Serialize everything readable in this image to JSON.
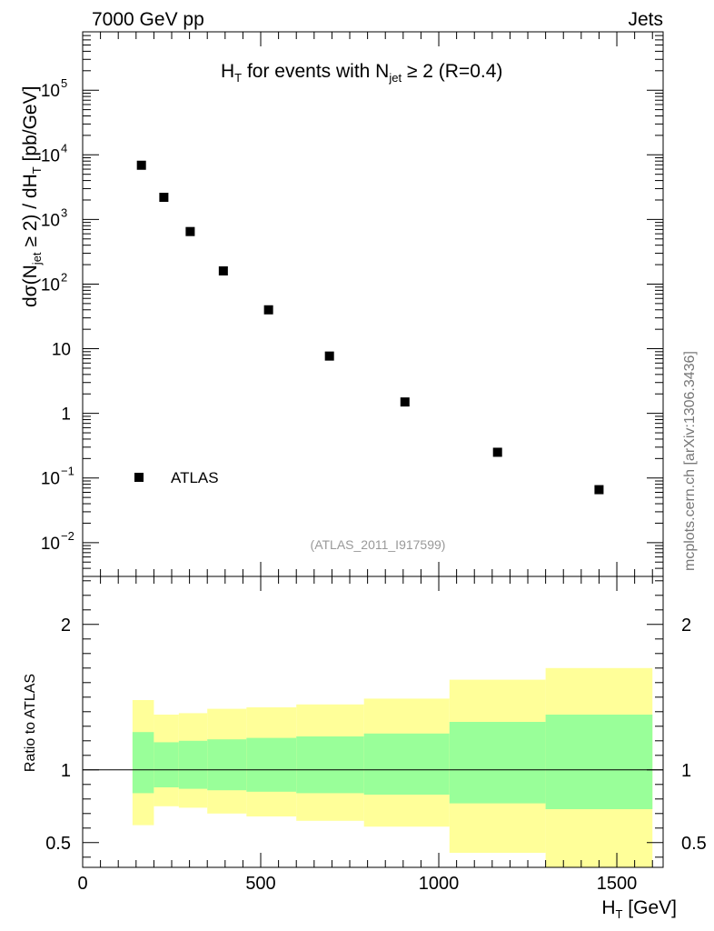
{
  "header": {
    "left": "7000 GeV pp",
    "right": "Jets"
  },
  "side_label": "mcplots.cern.ch [arXiv:1306.3436]",
  "watermark": "(ATLAS_2011_I917599)",
  "colors": {
    "band_outer": "#ffff99",
    "band_inner": "#99ff99",
    "marker": "#000000"
  },
  "chart_data": [
    {
      "type": "scatter",
      "title_main": "H",
      "title_sub": "T",
      "title_mid": " for events with N",
      "title_sub2": "jet",
      "title_end": " ≥ 2 (R=0.4)",
      "ylabel_a": "dσ(N",
      "ylabel_sub1": "jet",
      "ylabel_b": " ≥ 2) / dH",
      "ylabel_sub2": "T",
      "ylabel_c": " [pb/GeV]",
      "yscale": "log",
      "ylim": [
        0.003,
        800000
      ],
      "xlim": [
        0,
        1630
      ],
      "series": [
        {
          "name": "ATLAS",
          "x": [
            165,
            228,
            302,
            395,
            522,
            693,
            905,
            1165,
            1450
          ],
          "y": [
            6900,
            2200,
            650,
            160,
            40,
            7.7,
            1.5,
            0.25,
            0.066
          ]
        }
      ],
      "legend": "ATLAS",
      "ytick_labels": [
        {
          "v": 0.01,
          "base": "10",
          "exp": "−2"
        },
        {
          "v": 0.1,
          "base": "10",
          "exp": "−1"
        },
        {
          "v": 1,
          "base": "1",
          "exp": ""
        },
        {
          "v": 10,
          "base": "10",
          "exp": ""
        },
        {
          "v": 100,
          "base": "10",
          "exp": "2"
        },
        {
          "v": 1000,
          "base": "10",
          "exp": "3"
        },
        {
          "v": 10000,
          "base": "10",
          "exp": "4"
        },
        {
          "v": 100000,
          "base": "10",
          "exp": "5"
        }
      ]
    },
    {
      "type": "area",
      "ylabel": "Ratio to ATLAS",
      "ylim": [
        0.33,
        2.33
      ],
      "xlim": [
        0,
        1630
      ],
      "reference_line": 1,
      "yticks": [
        0.5,
        1,
        2
      ],
      "ytick_labels": [
        "0.5",
        "1",
        "2"
      ],
      "xticks": [
        0,
        500,
        1000,
        1500
      ],
      "xtick_labels": [
        "0",
        "500",
        "1000",
        "1500"
      ],
      "xlabel_main": "H",
      "xlabel_sub": "T",
      "xlabel_end": " [GeV]",
      "bins": [
        {
          "x0": 140,
          "x1": 200,
          "inner": [
            0.84,
            1.26
          ],
          "outer": [
            0.62,
            1.48
          ]
        },
        {
          "x0": 200,
          "x1": 270,
          "inner": [
            0.88,
            1.19
          ],
          "outer": [
            0.75,
            1.38
          ]
        },
        {
          "x0": 270,
          "x1": 350,
          "inner": [
            0.87,
            1.2
          ],
          "outer": [
            0.74,
            1.39
          ]
        },
        {
          "x0": 350,
          "x1": 460,
          "inner": [
            0.86,
            1.21
          ],
          "outer": [
            0.7,
            1.42
          ]
        },
        {
          "x0": 460,
          "x1": 600,
          "inner": [
            0.85,
            1.22
          ],
          "outer": [
            0.68,
            1.43
          ]
        },
        {
          "x0": 600,
          "x1": 790,
          "inner": [
            0.84,
            1.23
          ],
          "outer": [
            0.65,
            1.45
          ]
        },
        {
          "x0": 790,
          "x1": 1030,
          "inner": [
            0.83,
            1.25
          ],
          "outer": [
            0.61,
            1.49
          ]
        },
        {
          "x0": 1030,
          "x1": 1300,
          "inner": [
            0.77,
            1.33
          ],
          "outer": [
            0.43,
            1.62
          ]
        },
        {
          "x0": 1300,
          "x1": 1600,
          "inner": [
            0.73,
            1.38
          ],
          "outer": [
            0.33,
            1.7
          ]
        }
      ]
    }
  ]
}
